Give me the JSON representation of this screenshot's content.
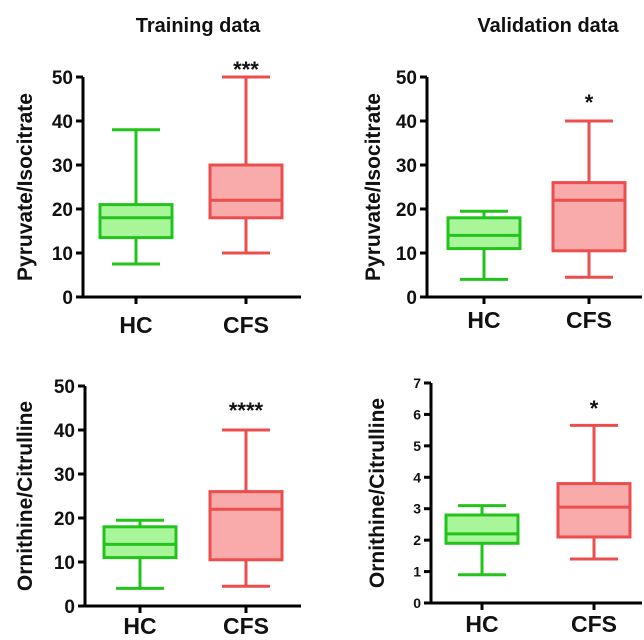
{
  "column_titles": [
    "Training data",
    "Validation data"
  ],
  "colors": {
    "HC_stroke": "#22c41c",
    "HC_fill": "#a9f59a",
    "CFS_stroke": "#ec4d4d",
    "CFS_fill": "#f9aaaa",
    "axis": "#000000"
  },
  "chart_data": [
    {
      "type": "box",
      "title": "Training data",
      "ylabel": "Pyruvate/Isocitrate",
      "ylim": [
        0,
        50
      ],
      "yticks": [
        0,
        10,
        20,
        30,
        40,
        50
      ],
      "categories": [
        "HC",
        "CFS"
      ],
      "boxes": [
        {
          "name": "HC",
          "min": 7.5,
          "q1": 13.5,
          "median": 18,
          "q3": 21,
          "max": 38
        },
        {
          "name": "CFS",
          "min": 10,
          "q1": 18,
          "median": 22,
          "q3": 30,
          "max": 50
        }
      ],
      "significance": "***"
    },
    {
      "type": "box",
      "title": "Validation data",
      "ylabel": "Pyruvate/Isocitrate",
      "ylim": [
        0,
        50
      ],
      "yticks": [
        0,
        10,
        20,
        30,
        40,
        50
      ],
      "categories": [
        "HC",
        "CFS"
      ],
      "boxes": [
        {
          "name": "HC",
          "min": 4,
          "q1": 11,
          "median": 14,
          "q3": 18,
          "max": 19.5
        },
        {
          "name": "CFS",
          "min": 4.5,
          "q1": 10.5,
          "median": 22,
          "q3": 26,
          "max": 40
        }
      ],
      "significance": "*"
    },
    {
      "type": "box",
      "ylabel": "Ornithine/Citrulline",
      "ylim": [
        0,
        50
      ],
      "yticks": [
        0,
        10,
        20,
        30,
        40,
        50
      ],
      "categories": [
        "HC",
        "CFS"
      ],
      "boxes": [
        {
          "name": "HC",
          "min": 4,
          "q1": 11,
          "median": 14,
          "q3": 18,
          "max": 19.5
        },
        {
          "name": "CFS",
          "min": 4.5,
          "q1": 10.5,
          "median": 22,
          "q3": 26,
          "max": 40
        }
      ],
      "significance": "****"
    },
    {
      "type": "box",
      "ylabel": "Ornithine/Citrulline",
      "ylim": [
        0,
        7
      ],
      "yticks": [
        0,
        1,
        2,
        3,
        4,
        5,
        6,
        7
      ],
      "categories": [
        "HC",
        "CFS"
      ],
      "boxes": [
        {
          "name": "HC",
          "min": 0.9,
          "q1": 1.9,
          "median": 2.2,
          "q3": 2.8,
          "max": 3.1
        },
        {
          "name": "CFS",
          "min": 1.4,
          "q1": 2.1,
          "median": 3.05,
          "q3": 3.8,
          "max": 5.65
        }
      ],
      "significance": "*"
    }
  ]
}
